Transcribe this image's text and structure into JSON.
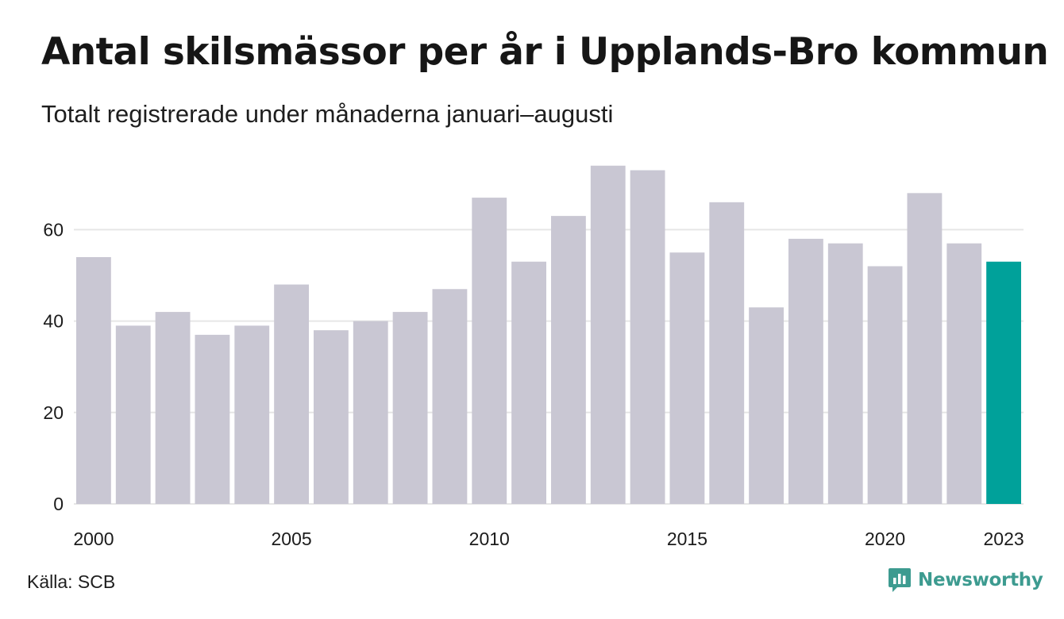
{
  "header": {
    "title": "Antal skilsmässor per år i Upplands-Bro kommun",
    "subtitle": "Totalt registrerade under månaderna januari–augusti"
  },
  "footer": {
    "source": "Källa: SCB",
    "brand": "Newsworthy",
    "brand_icon": "newsworthy-logo-icon"
  },
  "colors": {
    "bar": "#c9c7d3",
    "highlight": "#00a19a",
    "grid": "#e6e6e6",
    "text": "#1b1b1b",
    "brand": "#3d9b90"
  },
  "chart_data": {
    "type": "bar",
    "categories": [
      "2000",
      "2001",
      "2002",
      "2003",
      "2004",
      "2005",
      "2006",
      "2007",
      "2008",
      "2009",
      "2010",
      "2011",
      "2012",
      "2013",
      "2014",
      "2015",
      "2016",
      "2017",
      "2018",
      "2019",
      "2020",
      "2021",
      "2022",
      "2023"
    ],
    "values": [
      54,
      39,
      42,
      37,
      39,
      48,
      38,
      40,
      42,
      47,
      67,
      53,
      63,
      74,
      73,
      55,
      66,
      43,
      58,
      57,
      52,
      68,
      57,
      53
    ],
    "highlight_category": "2023",
    "x_tick_labels": [
      "2000",
      "2005",
      "2010",
      "2015",
      "2020",
      "2023"
    ],
    "y_ticks": [
      0,
      20,
      40,
      60
    ],
    "ylim": [
      0,
      80
    ],
    "xlabel": "",
    "ylabel": "",
    "grid": true,
    "legend": "none"
  }
}
